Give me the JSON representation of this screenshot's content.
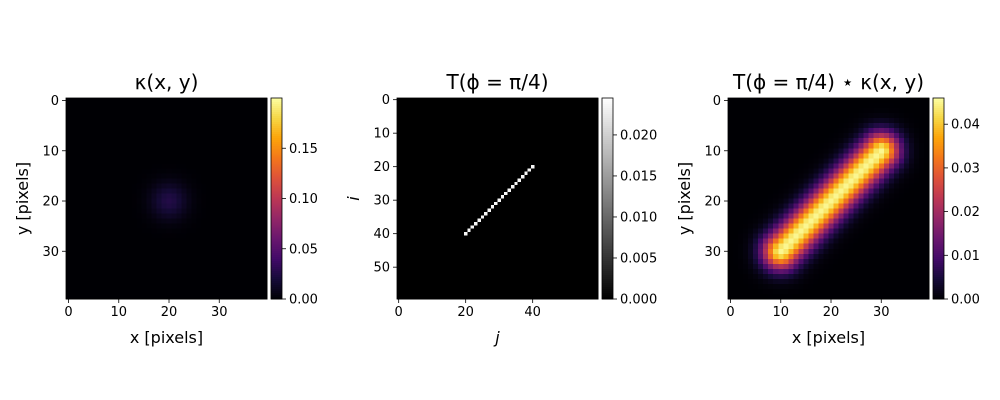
{
  "chart_data": [
    {
      "type": "heatmap",
      "title": "κ(x, y)",
      "xlabel": "x [pixels]",
      "ylabel": "y [pixels]",
      "size": [
        40,
        40
      ],
      "colormap": "inferno",
      "content": {
        "kind": "gaussian",
        "center": [
          20,
          20
        ],
        "sigma": 2.5
      },
      "xticks": [
        "0",
        "10",
        "20",
        "30"
      ],
      "yticks": [
        "0",
        "10",
        "20",
        "30"
      ],
      "colorbar": {
        "min": 0,
        "max": 0.2,
        "ticks": [
          "0.00",
          "0.05",
          "0.10",
          "0.15"
        ]
      }
    },
    {
      "type": "heatmap",
      "title": "T(ϕ = π/4)",
      "xlabel": "j",
      "ylabel": "i",
      "size": [
        60,
        60
      ],
      "colormap": "gray",
      "content": {
        "kind": "line",
        "from": [
          20,
          40
        ],
        "to": [
          40,
          20
        ],
        "value": 0.0236
      },
      "xticks": [
        "0",
        "20",
        "40"
      ],
      "yticks": [
        "0",
        "10",
        "20",
        "30",
        "40",
        "50"
      ],
      "colorbar": {
        "min": 0,
        "max": 0.0245,
        "ticks": [
          "0.000",
          "0.005",
          "0.010",
          "0.015",
          "0.020"
        ]
      }
    },
    {
      "type": "heatmap",
      "title": "T(ϕ = π/4) ⋆ κ(x, y)",
      "xlabel": "x [pixels]",
      "ylabel": "y [pixels]",
      "size": [
        40,
        40
      ],
      "colormap": "inferno",
      "content": {
        "kind": "blurred_line",
        "from": [
          10,
          30
        ],
        "to": [
          30,
          10
        ],
        "sigma": 2.5,
        "peak": 0.045
      },
      "xticks": [
        "0",
        "10",
        "20",
        "30"
      ],
      "yticks": [
        "0",
        "10",
        "20",
        "30"
      ],
      "colorbar": {
        "min": 0,
        "max": 0.046,
        "ticks": [
          "0.00",
          "0.01",
          "0.02",
          "0.03",
          "0.04"
        ]
      }
    }
  ]
}
